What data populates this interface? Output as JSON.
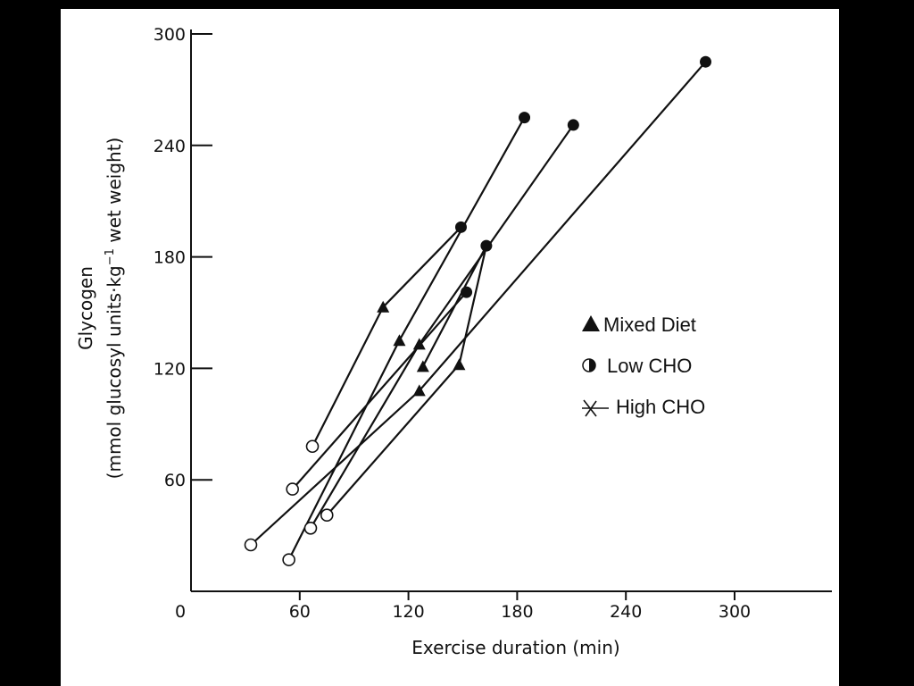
{
  "chart_data": {
    "type": "scatter",
    "xlabel": "Exercise duration (min)",
    "ylabel_line1": "Glycogen",
    "ylabel_line2_prefix": "(mmol glucosyl units·kg",
    "ylabel_sup": "−1",
    "ylabel_line2_suffix": " wet weight)",
    "xlim": [
      0,
      350
    ],
    "ylim": [
      0,
      300
    ],
    "x_ticks": [
      0,
      60,
      120,
      180,
      240,
      300
    ],
    "y_ticks": [
      60,
      120,
      180,
      240,
      300
    ],
    "legend": [
      {
        "label": "Mixed Diet",
        "marker": "triangle"
      },
      {
        "label": "Low CHO",
        "marker": "open-circle"
      },
      {
        "label": "High CHO",
        "marker": "filled-circle"
      }
    ],
    "series": [
      {
        "points": [
          {
            "x": 67,
            "y": 78,
            "diet": "low"
          },
          {
            "x": 106,
            "y": 153,
            "diet": "mixed"
          },
          {
            "x": 149,
            "y": 196,
            "diet": "high"
          }
        ]
      },
      {
        "points": [
          {
            "x": 54,
            "y": 17,
            "diet": "low"
          },
          {
            "x": 115,
            "y": 135,
            "diet": "mixed"
          },
          {
            "x": 184,
            "y": 255,
            "diet": "high"
          }
        ]
      },
      {
        "points": [
          {
            "x": 66,
            "y": 34,
            "diet": "low"
          },
          {
            "x": 126,
            "y": 133,
            "diet": "mixed"
          },
          {
            "x": 211,
            "y": 251,
            "diet": "high"
          }
        ]
      },
      {
        "points": [
          {
            "x": 75,
            "y": 41,
            "diet": "low"
          },
          {
            "x": 148,
            "y": 122,
            "diet": "mixed"
          },
          {
            "x": 163,
            "y": 186,
            "diet": "high"
          },
          {
            "x": 128,
            "y": 121,
            "diet": "mixed"
          }
        ]
      },
      {
        "points": [
          {
            "x": 56,
            "y": 55,
            "diet": "low"
          },
          {
            "x": 152,
            "y": 161,
            "diet": "high"
          }
        ]
      },
      {
        "points": [
          {
            "x": 33,
            "y": 25,
            "diet": "low"
          },
          {
            "x": 126,
            "y": 108,
            "diet": "mixed"
          },
          {
            "x": 284,
            "y": 285,
            "diet": "high"
          }
        ]
      }
    ]
  }
}
